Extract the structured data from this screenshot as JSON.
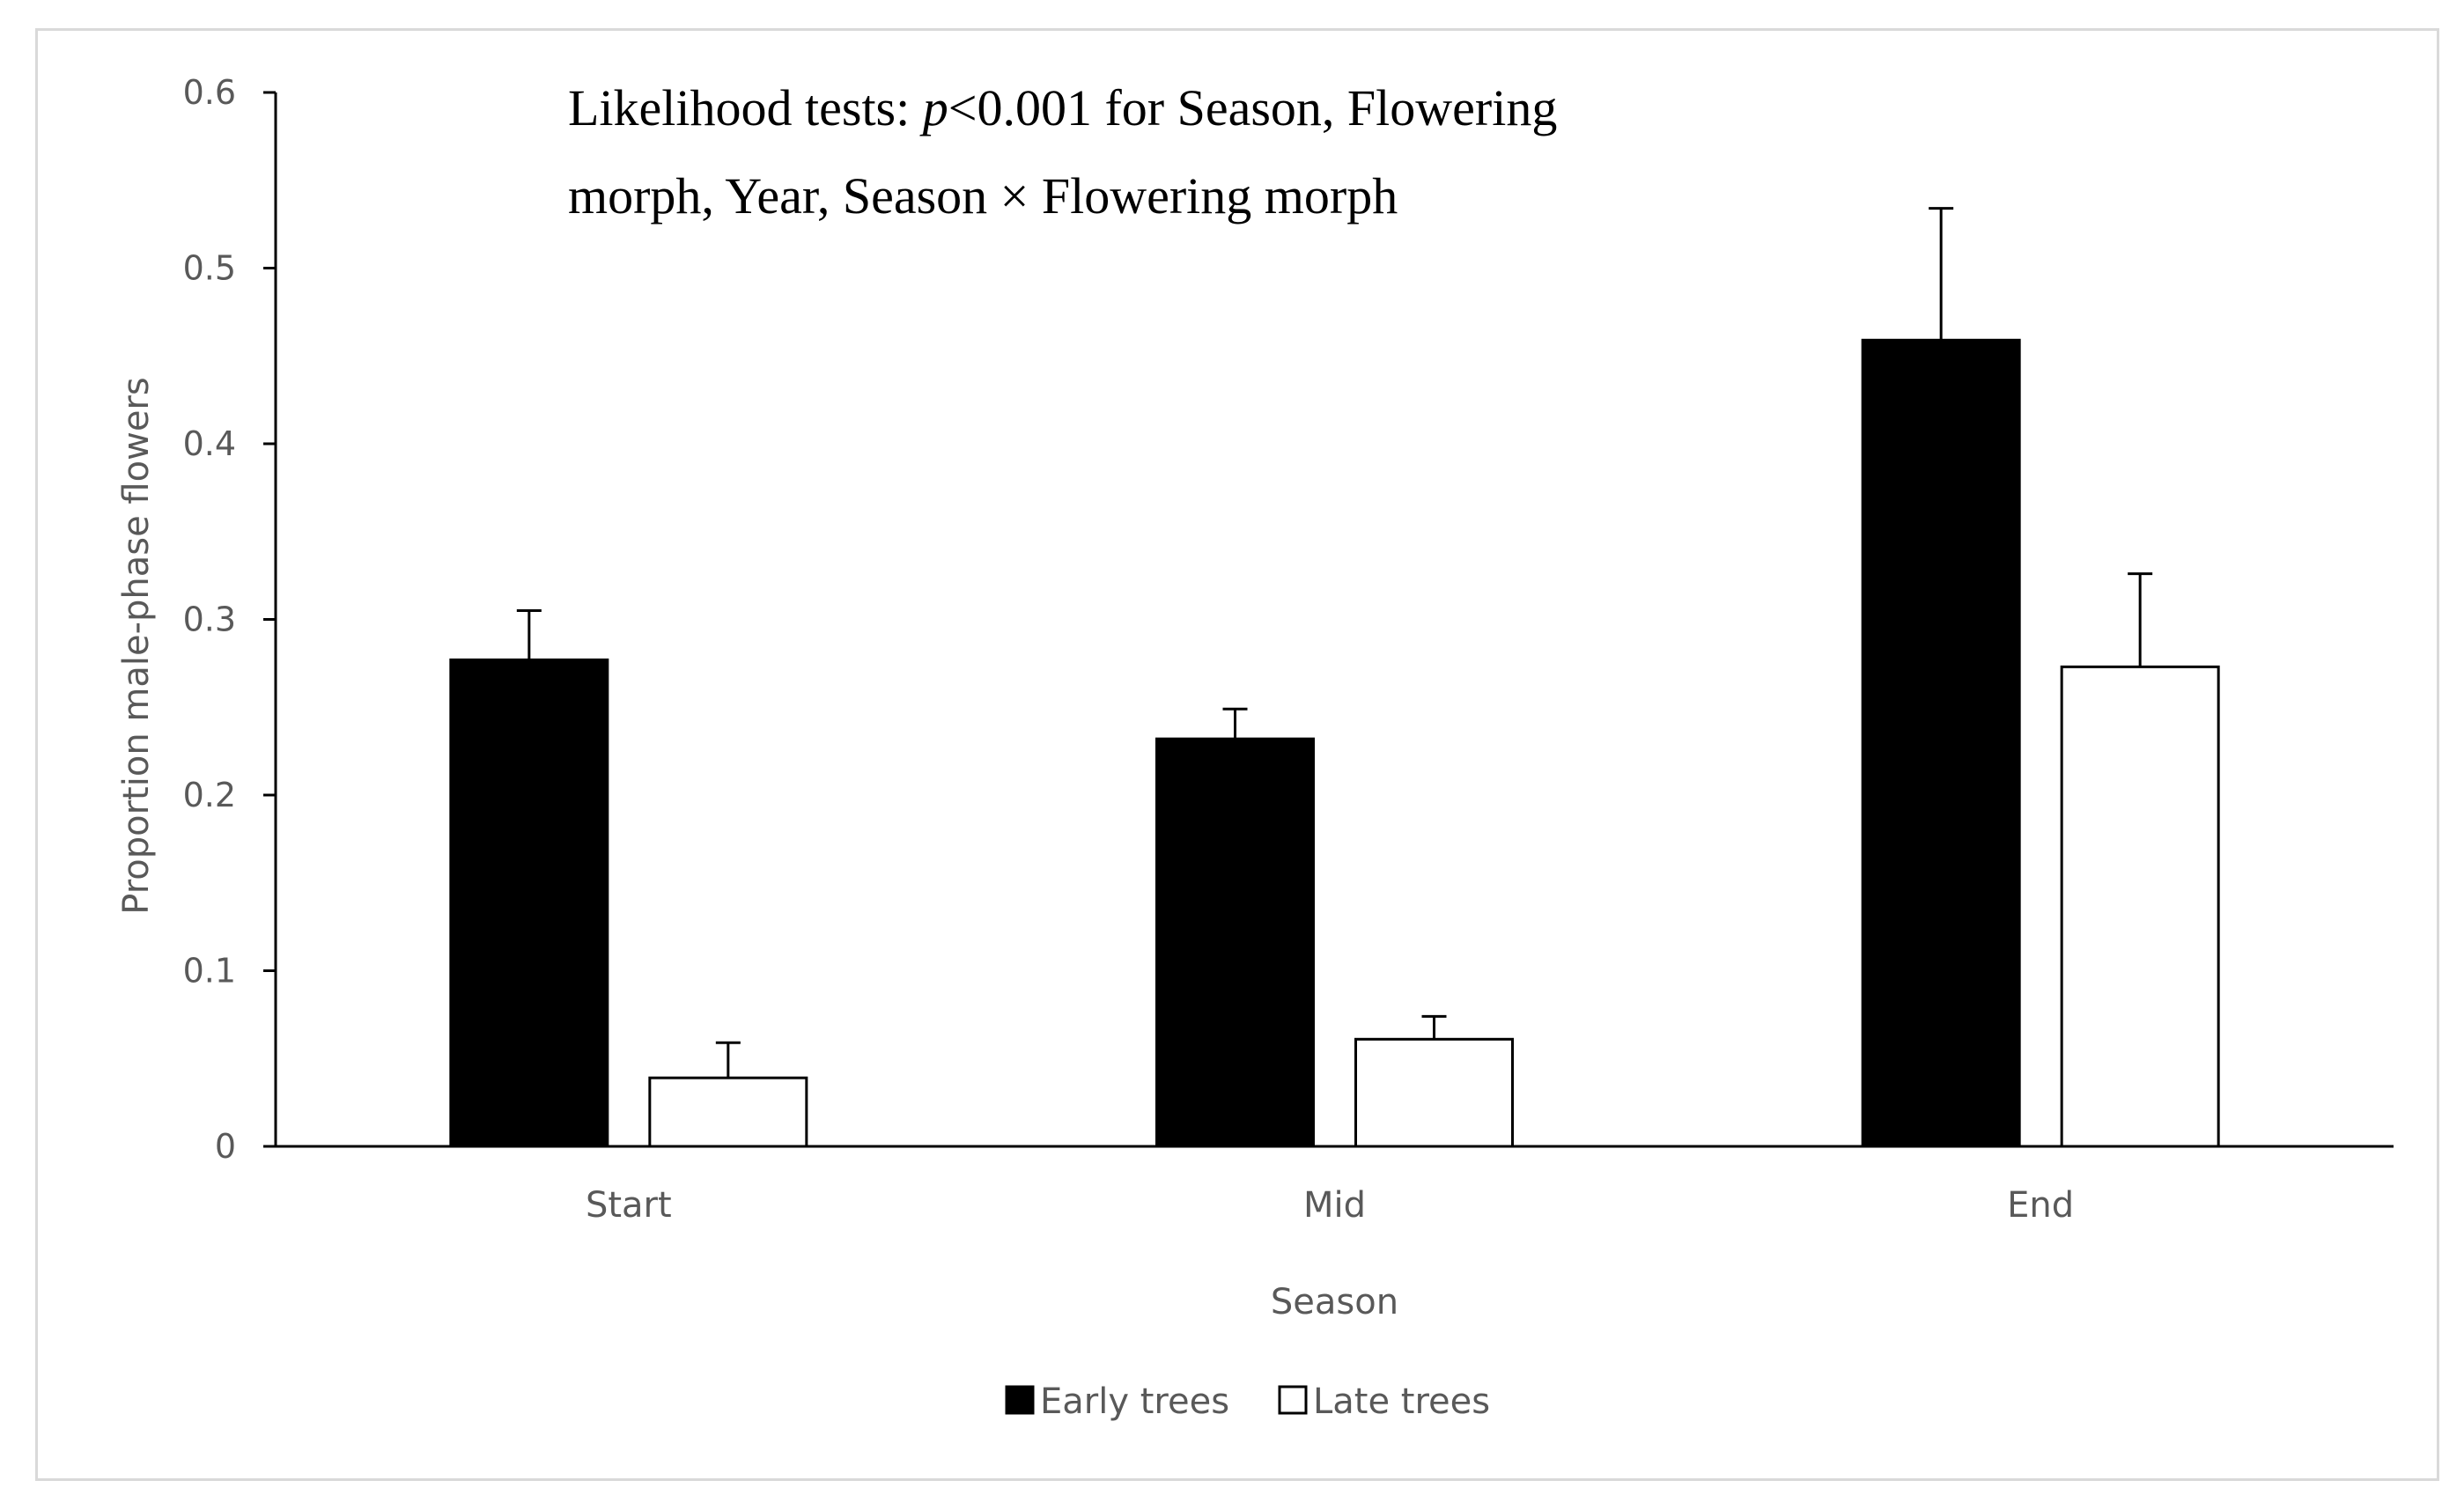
{
  "chart_data": {
    "type": "bar",
    "title": "",
    "xlabel": "Season",
    "ylabel": "Proportion male-phase flowers",
    "categories": [
      "Start",
      "Mid",
      "End"
    ],
    "series": [
      {
        "name": "Early trees",
        "color": "#000000",
        "values": [
          0.277,
          0.232,
          0.459
        ],
        "errors": [
          0.028,
          0.017,
          0.075
        ]
      },
      {
        "name": "Late trees",
        "color": "#ffffff",
        "values": [
          0.039,
          0.061,
          0.273
        ],
        "errors": [
          0.02,
          0.013,
          0.053
        ]
      }
    ],
    "ylim": [
      0,
      0.6
    ],
    "yticks": [
      0,
      0.1,
      0.2,
      0.3,
      0.4,
      0.5,
      0.6
    ],
    "ytick_labels": [
      "0",
      "0.1",
      "0.2",
      "0.3",
      "0.4",
      "0.5",
      "0.6"
    ],
    "grid": false,
    "legend_position": "bottom",
    "annotation": {
      "line1_prefix": "Likelihood tests: ",
      "line1_italic": "p",
      "line1_suffix": "<0.001 for Season, Flowering",
      "line2": "morph, Year, Season × Flowering morph"
    }
  }
}
